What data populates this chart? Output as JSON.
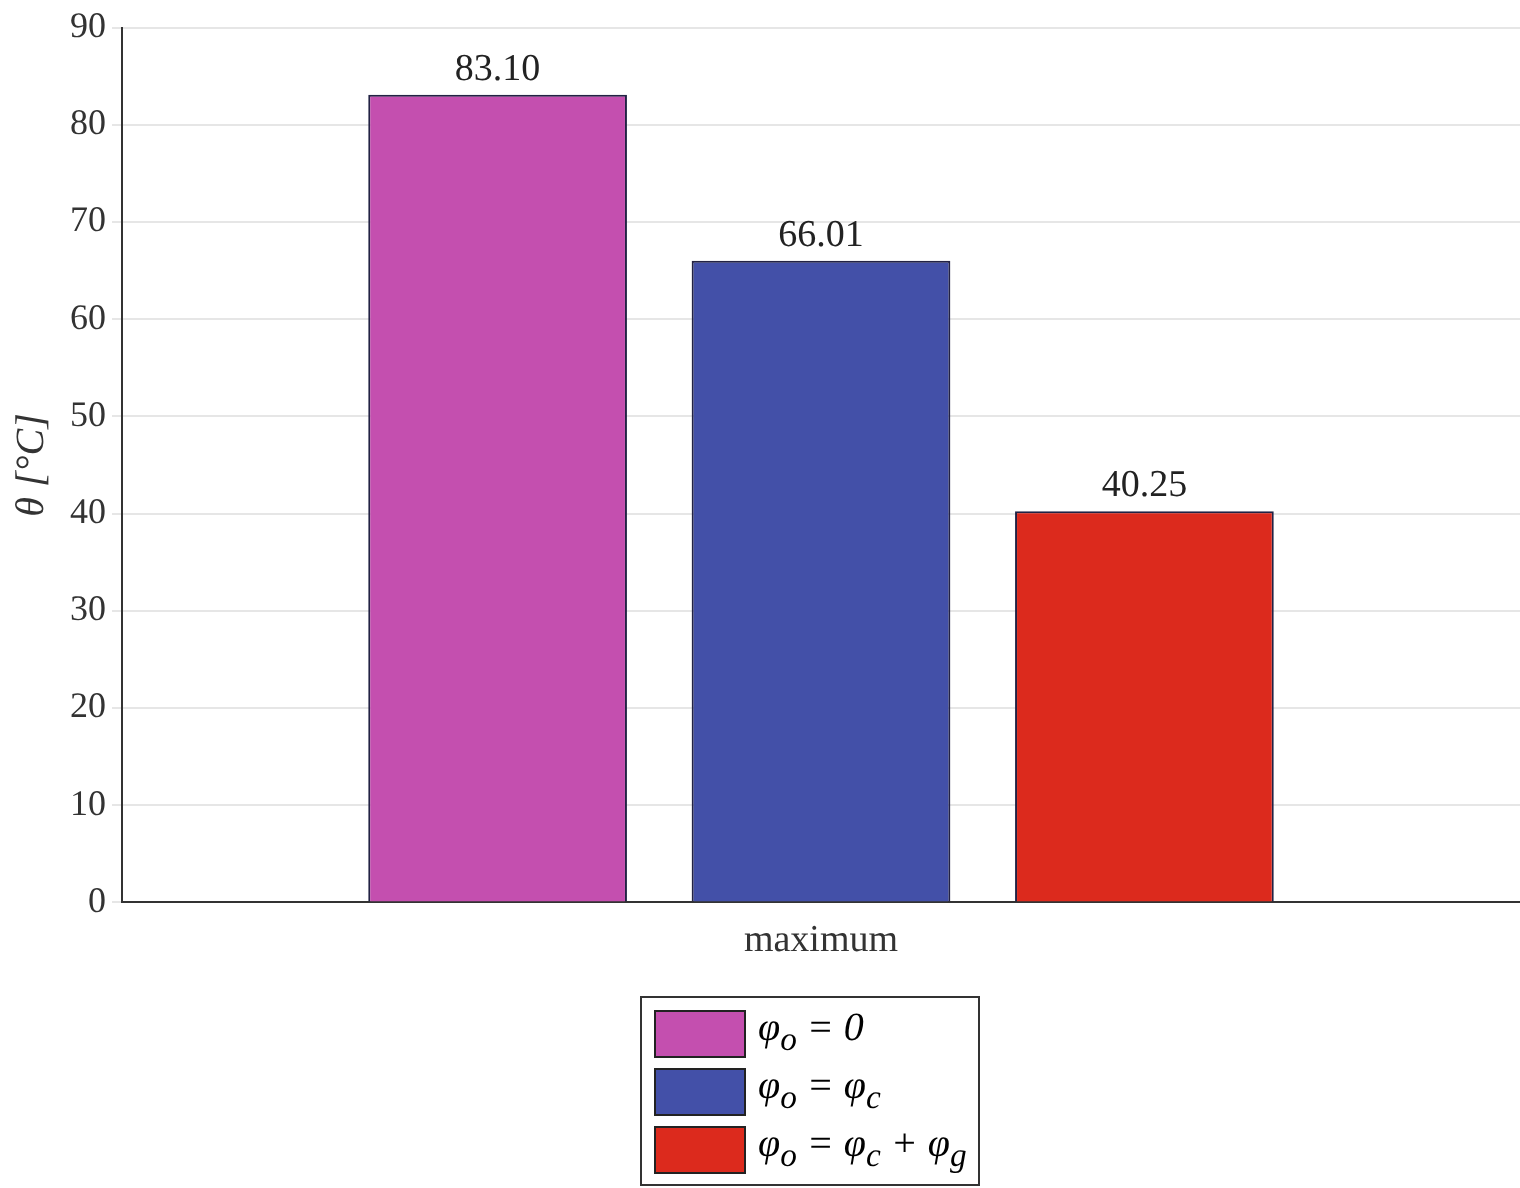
{
  "chart_data": {
    "type": "bar",
    "ylabel": "θ [°C]",
    "categories": [
      "maximum"
    ],
    "series": [
      {
        "name": "φ$_{o}$ = 0",
        "color": "#c44faf",
        "values": [
          83.1
        ],
        "value_labels": [
          "83.10"
        ]
      },
      {
        "name": "φ$_{o}$ = φ$_{c}$",
        "color": "#4350a8",
        "values": [
          66.01
        ],
        "value_labels": [
          "66.01"
        ]
      },
      {
        "name": "φ$_{o}$ = φ$_{c}$ + φ$_{g}$",
        "color": "#dc2a1d",
        "values": [
          40.25
        ],
        "value_labels": [
          "40.25"
        ]
      }
    ],
    "ylim": [
      0,
      90
    ],
    "yticks": [
      0,
      10,
      20,
      30,
      40,
      50,
      60,
      70,
      80,
      90
    ],
    "grid": "y",
    "legend": "bottom"
  }
}
